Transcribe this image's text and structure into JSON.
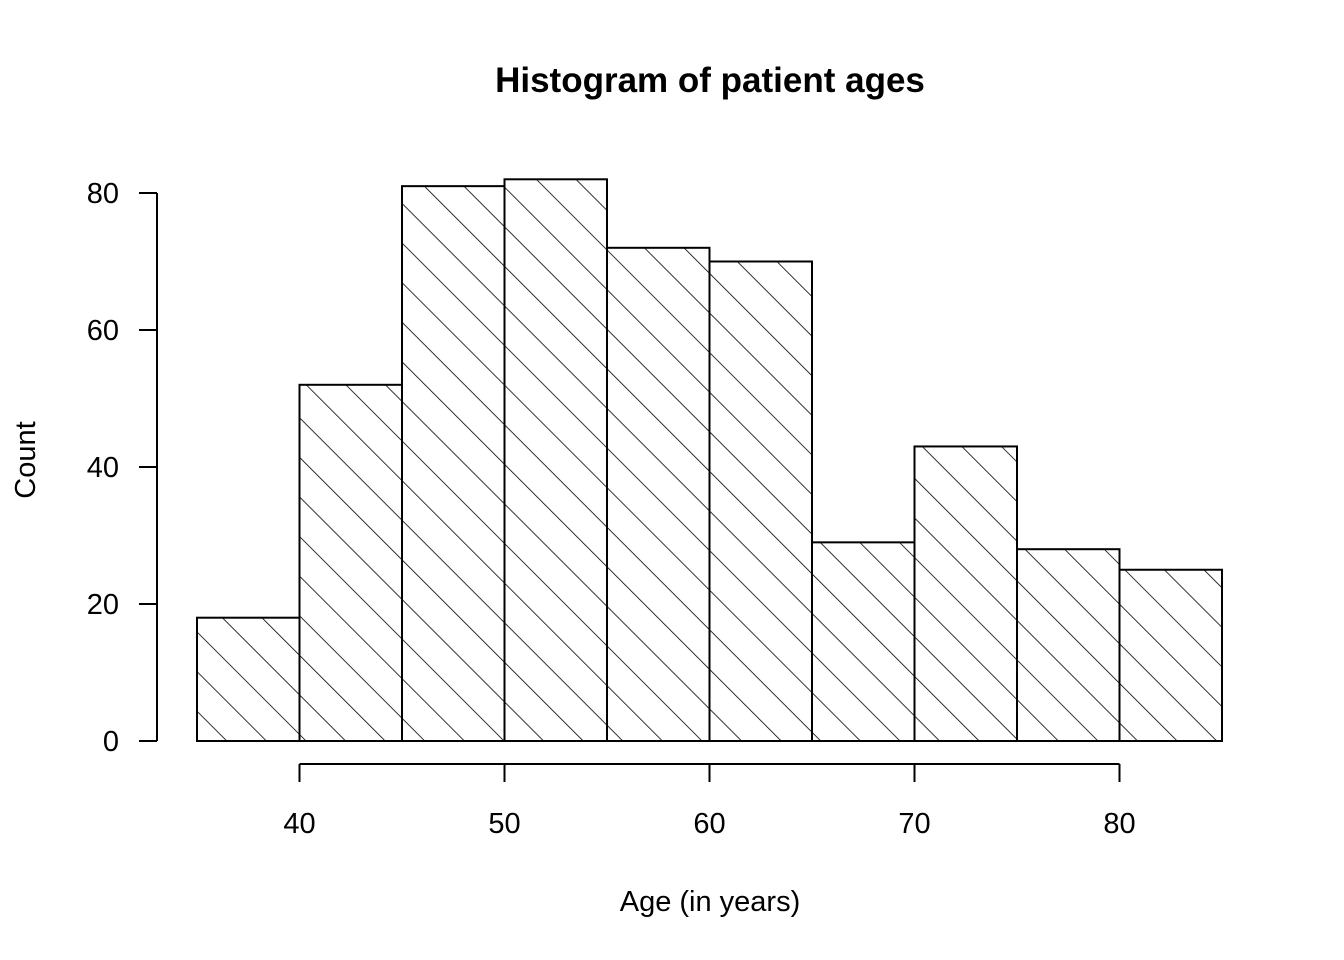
{
  "chart_data": {
    "type": "bar",
    "title": "Histogram of patient ages",
    "xlabel": "Age (in years)",
    "ylabel": "Count",
    "bin_edges": [
      35,
      40,
      45,
      50,
      55,
      60,
      65,
      70,
      75,
      80,
      85
    ],
    "values": [
      18,
      52,
      81,
      82,
      72,
      70,
      29,
      43,
      28,
      25
    ],
    "x_ticks": [
      40,
      50,
      60,
      70,
      80
    ],
    "y_ticks": [
      0,
      20,
      40,
      60,
      80
    ],
    "xlim": [
      35,
      85
    ],
    "ylim": [
      0,
      82
    ],
    "grid": false,
    "fill": "diagonal-hatch",
    "colors": {
      "stroke": "#000000",
      "background": "#ffffff"
    }
  }
}
